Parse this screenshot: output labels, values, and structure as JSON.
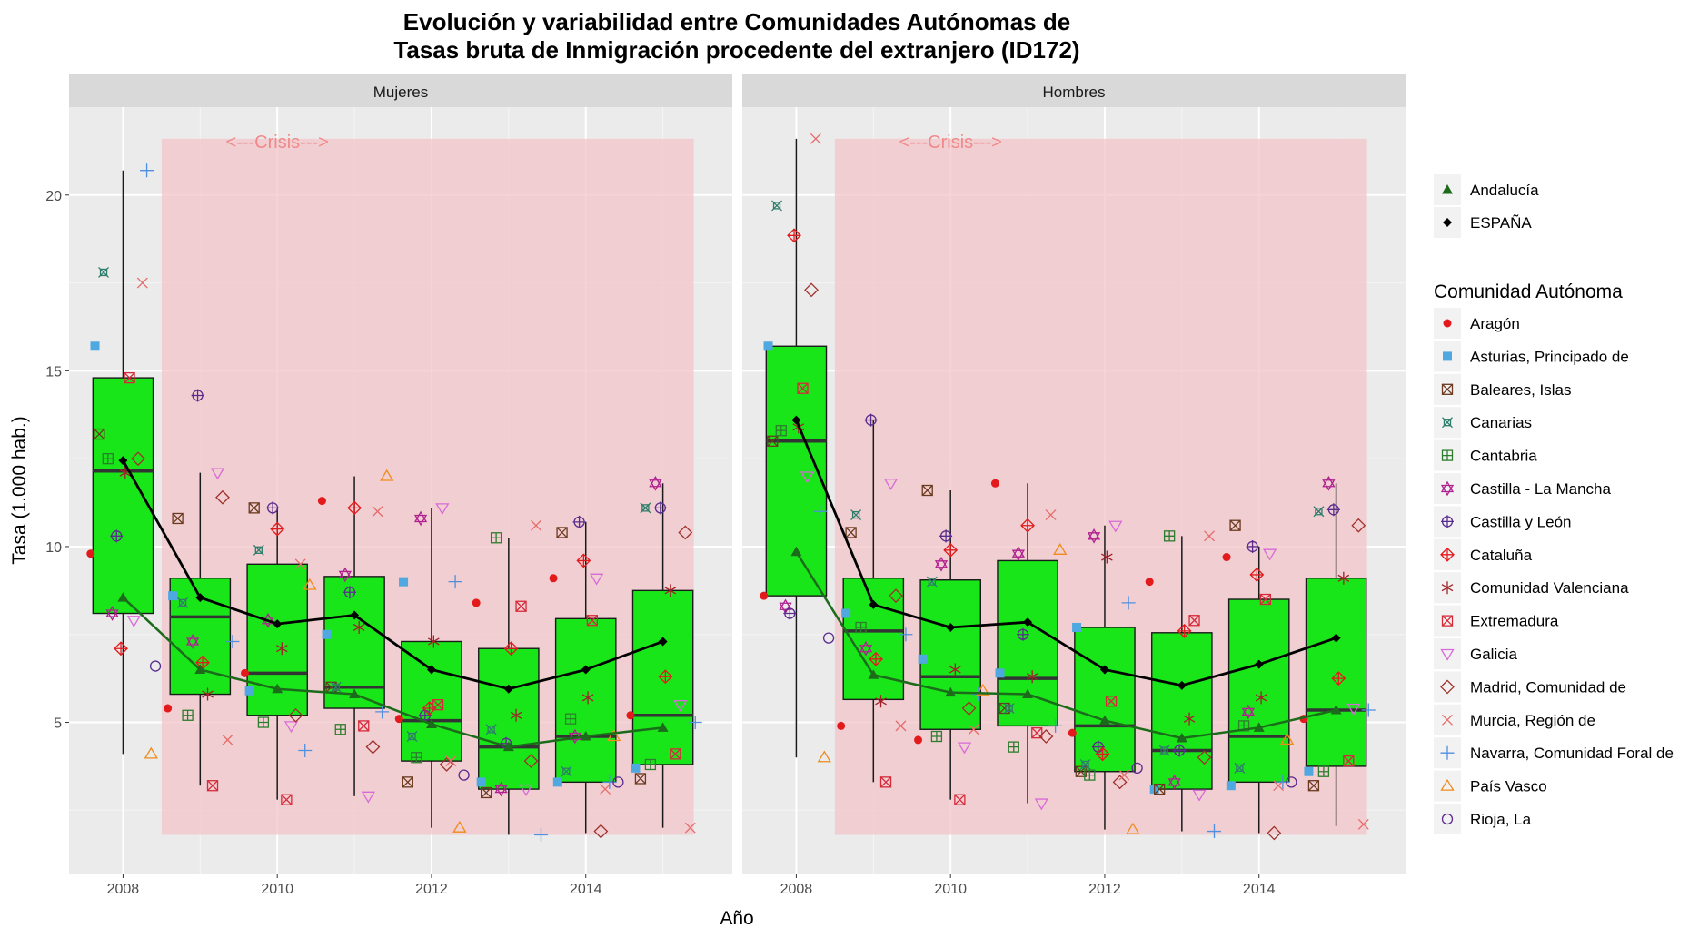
{
  "chart_data": {
    "type": "box",
    "title_line1": "Evolución y variabilidad entre Comunidades Autónomas de",
    "title_line2": "Tasas bruta de Inmigración procedente del extranjero (ID172)",
    "xlabel": "Año",
    "ylabel": "Tasa (1.000 hab.)",
    "x_ticks": [
      2008,
      2010,
      2012,
      2014
    ],
    "y_ticks": [
      5,
      10,
      15,
      20
    ],
    "xlim": [
      2007.3,
      2015.9
    ],
    "ylim": [
      0.7,
      22.5
    ],
    "crisis": {
      "label": "<---Crisis--->",
      "x_from": 2008.5,
      "x_to": 2015.4,
      "y_from": 1.8,
      "y_to": 21.6
    },
    "colors": {
      "box_fill": "#19e619",
      "espana": "#000000",
      "andalucia": "#1b6b1b",
      "crisis_fill": "#f2c4c8",
      "panel_bg": "#ebebeb",
      "strip_bg": "#d9d9d9"
    },
    "regions": [
      {
        "name": "Aragón",
        "shape": "dot",
        "color": "#e31a1c"
      },
      {
        "name": "Asturias, Principado de",
        "shape": "square",
        "color": "#4fa8e0"
      },
      {
        "name": "Baleares, Islas",
        "shape": "square-x",
        "color": "#6b3a1f"
      },
      {
        "name": "Canarias",
        "shape": "square-cross",
        "color": "#2e7d6b"
      },
      {
        "name": "Cantabria",
        "shape": "square-plus",
        "color": "#2e7d2e"
      },
      {
        "name": "Castilla - La Mancha",
        "shape": "star6",
        "color": "#b0208f"
      },
      {
        "name": "Castilla y León",
        "shape": "circle-plus",
        "color": "#5b2c8f"
      },
      {
        "name": "Cataluña",
        "shape": "diamond-plus",
        "color": "#e31a1c"
      },
      {
        "name": "Comunidad Valenciana",
        "shape": "asterisk",
        "color": "#a0202a"
      },
      {
        "name": "Extremadura",
        "shape": "square-x",
        "color": "#d62a3a"
      },
      {
        "name": "Galicia",
        "shape": "triangle-down",
        "color": "#d96ad9"
      },
      {
        "name": "Madrid, Comunidad de",
        "shape": "diamond",
        "color": "#a0302a"
      },
      {
        "name": "Murcia, Región de",
        "shape": "x",
        "color": "#e86b6b"
      },
      {
        "name": "Navarra, Comunidad Foral de",
        "shape": "plus",
        "color": "#4f8fe0"
      },
      {
        "name": "País Vasco",
        "shape": "triangle",
        "color": "#f08a1a"
      },
      {
        "name": "Rioja, La",
        "shape": "circle",
        "color": "#5b2c8f"
      }
    ],
    "legend": {
      "top_entries": [
        {
          "label": "Andalucía",
          "shape": "triangle-filled",
          "color": "#1b6b1b"
        },
        {
          "label": "ESPAÑA",
          "shape": "diamond-filled",
          "color": "#000000"
        }
      ],
      "title": "Comunidad Autónoma"
    },
    "panels": [
      {
        "label": "Mujeres",
        "boxes": [
          {
            "year": 2008,
            "lower": 4.1,
            "q1": 8.1,
            "median": 12.15,
            "q3": 14.8,
            "upper": 20.7
          },
          {
            "year": 2009,
            "lower": 3.2,
            "q1": 5.8,
            "median": 8.0,
            "q3": 9.1,
            "upper": 12.1
          },
          {
            "year": 2010,
            "lower": 2.8,
            "q1": 5.2,
            "median": 6.4,
            "q3": 9.5,
            "upper": 11.1
          },
          {
            "year": 2011,
            "lower": 2.9,
            "q1": 5.4,
            "median": 6.0,
            "q3": 9.15,
            "upper": 12.0
          },
          {
            "year": 2012,
            "lower": 2.0,
            "q1": 3.9,
            "median": 5.05,
            "q3": 7.3,
            "upper": 11.1
          },
          {
            "year": 2013,
            "lower": 1.8,
            "q1": 3.1,
            "median": 4.3,
            "q3": 7.1,
            "upper": 10.25
          },
          {
            "year": 2014,
            "lower": 1.85,
            "q1": 3.3,
            "median": 4.6,
            "q3": 7.95,
            "upper": 10.7
          },
          {
            "year": 2015,
            "lower": 2.0,
            "q1": 3.8,
            "median": 5.2,
            "q3": 8.75,
            "upper": 11.8
          }
        ],
        "espana": [
          12.45,
          8.55,
          7.8,
          8.05,
          6.5,
          5.95,
          6.5,
          7.3
        ],
        "andalucia": [
          8.55,
          6.5,
          5.95,
          5.8,
          4.95,
          4.3,
          4.6,
          4.85
        ],
        "points": [
          [
            9.8,
            15.7,
            13.2,
            17.8,
            12.5,
            8.1,
            10.3,
            7.1,
            12.1,
            14.8,
            7.9,
            12.5,
            17.5,
            20.7,
            4.1,
            6.6
          ],
          [
            5.4,
            8.6,
            10.8,
            8.4,
            5.2,
            7.3,
            14.3,
            6.7,
            5.8,
            3.2,
            12.1,
            11.4,
            4.5,
            7.3
          ],
          [
            6.4,
            5.9,
            11.1,
            9.9,
            5.0,
            7.9,
            11.1,
            10.5,
            7.1,
            2.8,
            4.9,
            5.2,
            9.5,
            4.2,
            8.9
          ],
          [
            11.3,
            7.5,
            6.0,
            6.0,
            4.8,
            9.2,
            8.7,
            11.1,
            7.7,
            4.9,
            2.9,
            4.3,
            11.0,
            5.3,
            12.0
          ],
          [
            5.1,
            9.0,
            3.3,
            4.6,
            4.0,
            10.8,
            5.2,
            5.4,
            7.3,
            5.5,
            11.1,
            3.8,
            3.9,
            9.0,
            2.0,
            3.5
          ],
          [
            8.4,
            3.3,
            3.0,
            4.8,
            10.25,
            3.1,
            4.4,
            7.1,
            5.2,
            8.3,
            3.1,
            3.9,
            10.6,
            1.8
          ],
          [
            9.1,
            3.3,
            10.4,
            3.6,
            5.1,
            4.6,
            10.7,
            9.6,
            5.7,
            7.9,
            9.1,
            1.9,
            3.1,
            3.3,
            4.6,
            3.3
          ],
          [
            5.2,
            3.7,
            3.4,
            11.1,
            3.8,
            11.8,
            11.1,
            6.3,
            8.75,
            4.1,
            5.5,
            10.4,
            2.0,
            5.0
          ]
        ]
      },
      {
        "label": "Hombres",
        "boxes": [
          {
            "year": 2008,
            "lower": 4.0,
            "q1": 8.6,
            "median": 13.0,
            "q3": 15.7,
            "upper": 21.6
          },
          {
            "year": 2009,
            "lower": 3.3,
            "q1": 5.65,
            "median": 7.6,
            "q3": 9.1,
            "upper": 13.6
          },
          {
            "year": 2010,
            "lower": 2.8,
            "q1": 4.8,
            "median": 6.3,
            "q3": 9.05,
            "upper": 11.6
          },
          {
            "year": 2011,
            "lower": 2.7,
            "q1": 4.9,
            "median": 6.25,
            "q3": 9.6,
            "upper": 11.8
          },
          {
            "year": 2012,
            "lower": 1.95,
            "q1": 3.6,
            "median": 4.9,
            "q3": 7.7,
            "upper": 10.6
          },
          {
            "year": 2013,
            "lower": 1.9,
            "q1": 3.1,
            "median": 4.2,
            "q3": 7.55,
            "upper": 10.3
          },
          {
            "year": 2014,
            "lower": 1.85,
            "q1": 3.3,
            "median": 4.6,
            "q3": 8.5,
            "upper": 10.0
          },
          {
            "year": 2015,
            "lower": 2.05,
            "q1": 3.75,
            "median": 5.35,
            "q3": 9.1,
            "upper": 11.8
          }
        ],
        "espana": [
          13.6,
          8.35,
          7.7,
          7.85,
          6.5,
          6.05,
          6.65,
          7.4
        ],
        "andalucia": [
          9.85,
          6.35,
          5.85,
          5.8,
          5.05,
          4.55,
          4.85,
          5.35
        ],
        "points": [
          [
            8.6,
            15.7,
            13.0,
            19.7,
            13.3,
            8.3,
            8.1,
            18.85,
            13.4,
            14.5,
            12.0,
            17.3,
            21.6,
            11.0,
            4.0,
            7.4
          ],
          [
            4.9,
            8.1,
            10.4,
            10.9,
            7.7,
            7.1,
            13.6,
            6.8,
            5.6,
            3.3,
            11.8,
            8.6,
            4.9,
            7.5
          ],
          [
            4.5,
            6.8,
            11.6,
            9.0,
            4.6,
            9.5,
            10.3,
            9.9,
            6.5,
            2.8,
            4.3,
            5.4,
            4.8,
            5.8,
            5.9
          ],
          [
            11.8,
            6.4,
            5.4,
            5.4,
            4.3,
            9.8,
            7.5,
            10.6,
            6.3,
            4.7,
            2.7,
            4.6,
            10.9,
            4.9,
            9.9
          ],
          [
            4.7,
            7.7,
            3.6,
            3.8,
            3.5,
            10.3,
            4.3,
            4.1,
            9.7,
            5.6,
            10.6,
            3.3,
            3.5,
            8.4,
            1.95,
            3.7
          ],
          [
            9.0,
            3.1,
            3.1,
            4.2,
            10.3,
            3.3,
            4.2,
            7.6,
            5.1,
            7.9,
            2.95,
            4.0,
            10.3,
            1.9
          ],
          [
            9.7,
            3.2,
            10.6,
            3.7,
            4.9,
            5.3,
            10.0,
            9.2,
            5.7,
            8.5,
            9.8,
            1.85,
            3.2,
            3.3,
            4.5,
            3.3
          ],
          [
            5.1,
            3.6,
            3.2,
            11.0,
            3.6,
            11.8,
            11.05,
            6.25,
            9.1,
            3.9,
            5.4,
            10.6,
            2.1,
            5.35
          ]
        ]
      }
    ]
  }
}
